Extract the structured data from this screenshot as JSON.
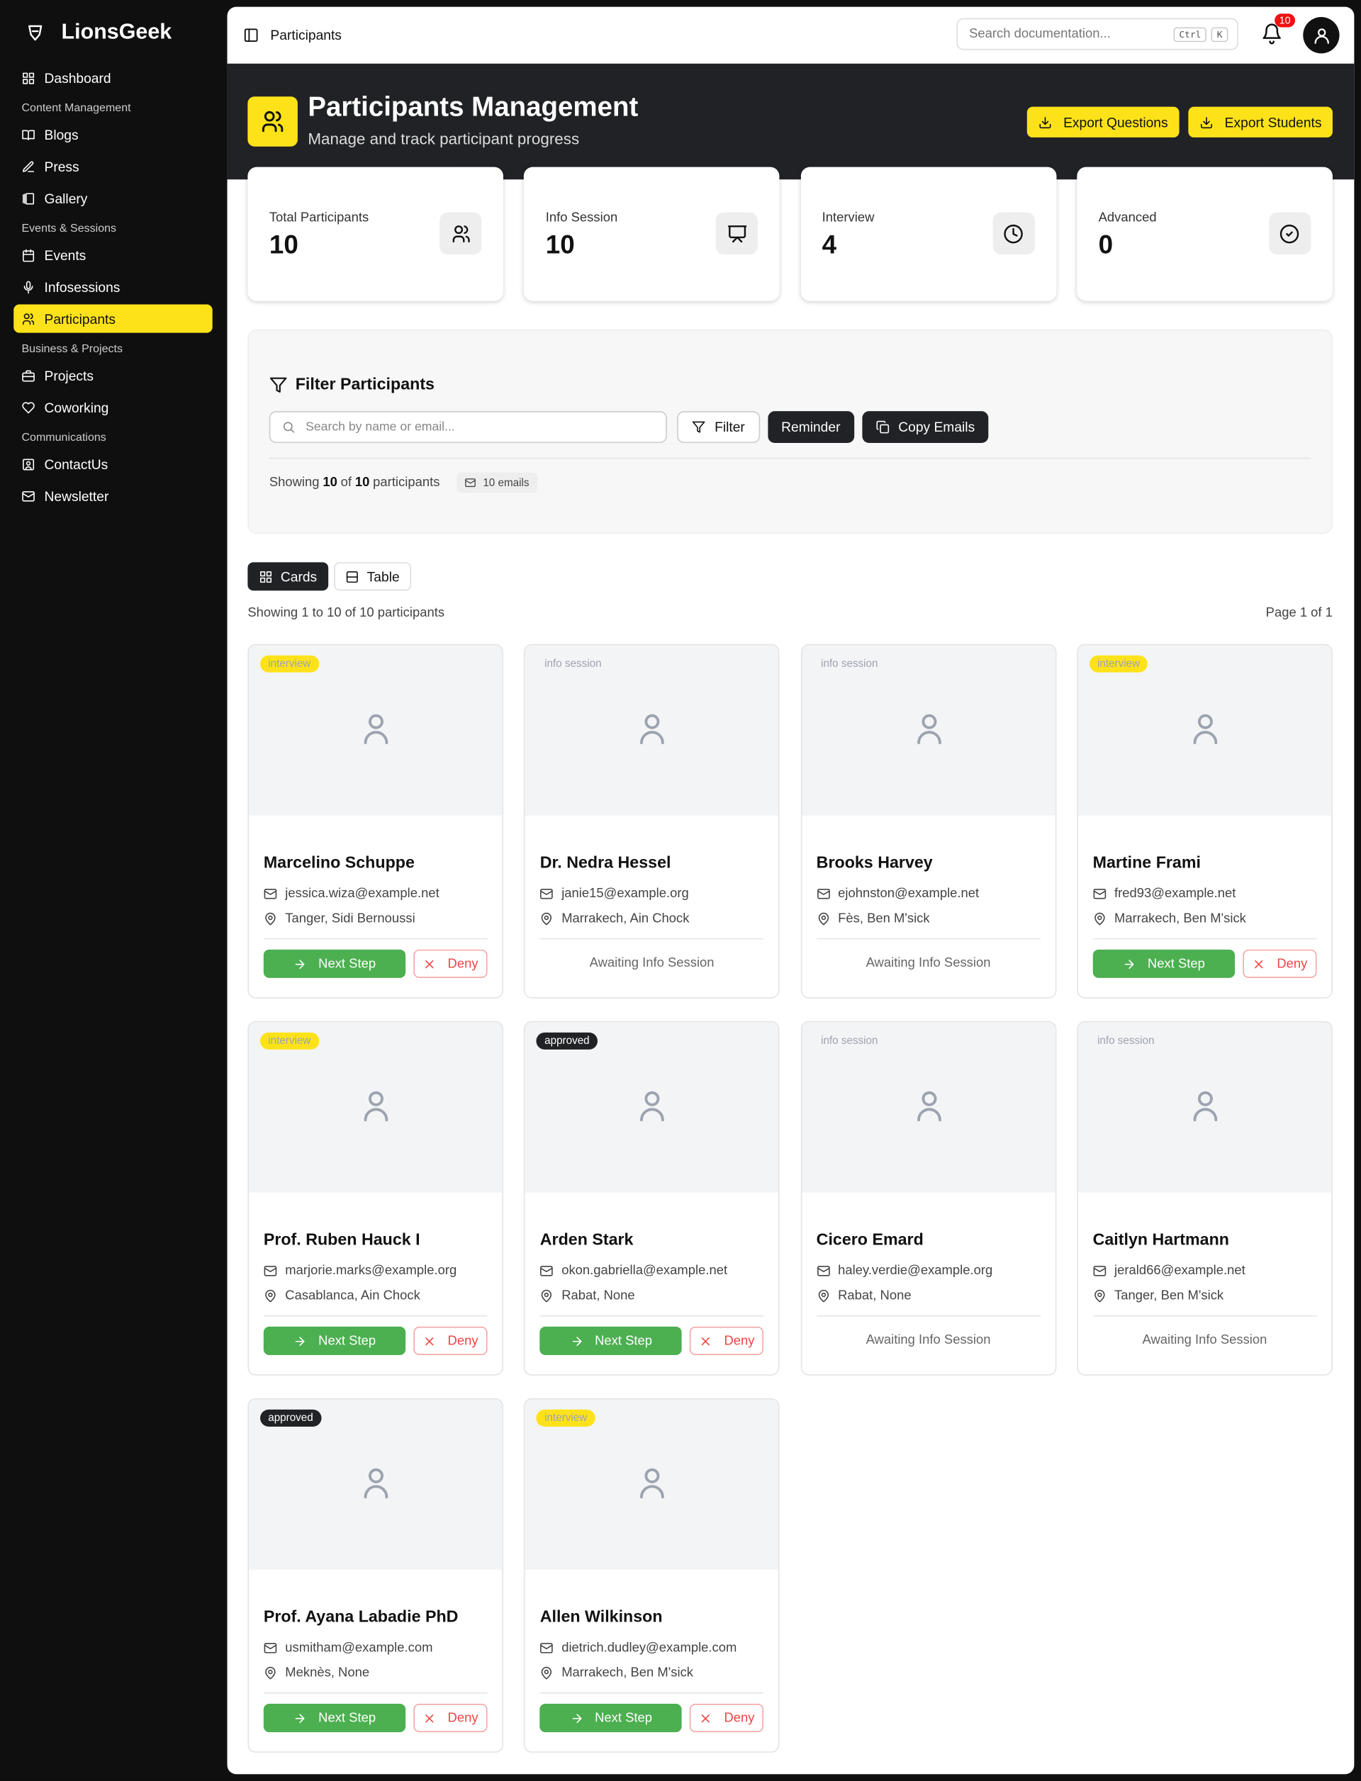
{
  "sidebar": {
    "brand": "LionsGeek",
    "dashboard": "Dashboard",
    "sections": [
      {
        "heading": "Content Management",
        "items": [
          "Blogs",
          "Press",
          "Gallery"
        ]
      },
      {
        "heading": "Events & Sessions",
        "items": [
          "Events",
          "Infosessions",
          "Participants"
        ]
      },
      {
        "heading": "Business & Projects",
        "items": [
          "Projects",
          "Coworking"
        ]
      },
      {
        "heading": "Communications",
        "items": [
          "ContactUs",
          "Newsletter"
        ]
      }
    ]
  },
  "topbar": {
    "breadcrumb": "Participants",
    "search_placeholder": "Search documentation...",
    "shortcut": [
      "Ctrl",
      "K"
    ],
    "notifications": 10
  },
  "hero": {
    "title": "Participants Management",
    "subtitle": "Manage and track participant progress",
    "actions": [
      "Export Questions",
      "Export Students"
    ]
  },
  "stats": [
    {
      "label": "Total Participants",
      "value": 10
    },
    {
      "label": "Info Session",
      "value": 10
    },
    {
      "label": "Interview",
      "value": 4
    },
    {
      "label": "Advanced",
      "value": 0
    }
  ],
  "filter": {
    "title": "Filter Participants",
    "search_placeholder": "Search by name or email...",
    "buttons": [
      "Filter",
      "Reminder",
      "Copy Emails"
    ],
    "summary": {
      "prefix": "Showing",
      "shown": 10,
      "middle": "of",
      "total": 10,
      "suffix": "participants"
    },
    "emails": "10 emails"
  },
  "view": {
    "tabs": [
      "Cards",
      "Table"
    ],
    "results": "Showing 1 to 10 of 10 participants",
    "page": "Page 1 of 1"
  },
  "cards": [
    {
      "status": "interview",
      "name": "Marcelino Schuppe",
      "email": "jessica.wiza@example.net",
      "location": "Tanger, Sidi Bernoussi",
      "actions": [
        "Next Step",
        "Deny"
      ]
    },
    {
      "status": "info session",
      "name": "Dr. Nedra Hessel",
      "email": "janie15@example.org",
      "location": "Marrakech, Ain Chock",
      "note": "Awaiting Info Session"
    },
    {
      "status": "info session",
      "name": "Brooks Harvey",
      "email": "ejohnston@example.net",
      "location": "Fès, Ben M'sick",
      "note": "Awaiting Info Session"
    },
    {
      "status": "interview",
      "name": "Martine Frami",
      "email": "fred93@example.net",
      "location": "Marrakech, Ben M'sick",
      "actions": [
        "Next Step",
        "Deny"
      ]
    },
    {
      "status": "interview",
      "name": "Prof. Ruben Hauck I",
      "email": "marjorie.marks@example.org",
      "location": "Casablanca, Ain Chock",
      "actions": [
        "Next Step",
        "Deny"
      ]
    },
    {
      "status": "approved",
      "name": "Arden Stark",
      "email": "okon.gabriella@example.net",
      "location": "Rabat, None",
      "actions": [
        "Next Step",
        "Deny"
      ]
    },
    {
      "status": "info session",
      "name": "Cicero Emard",
      "email": "haley.verdie@example.org",
      "location": "Rabat, None",
      "note": "Awaiting Info Session"
    },
    {
      "status": "info session",
      "name": "Caitlyn Hartmann",
      "email": "jerald66@example.net",
      "location": "Tanger, Ben M'sick",
      "note": "Awaiting Info Session"
    },
    {
      "status": "approved",
      "name": "Prof. Ayana Labadie PhD",
      "email": "usmitham@example.com",
      "location": "Meknès, None",
      "actions": [
        "Next Step",
        "Deny"
      ]
    },
    {
      "status": "interview",
      "name": "Allen Wilkinson",
      "email": "dietrich.dudley@example.com",
      "location": "Marrakech, Ben M'sick",
      "actions": [
        "Next Step",
        "Deny"
      ]
    }
  ]
}
